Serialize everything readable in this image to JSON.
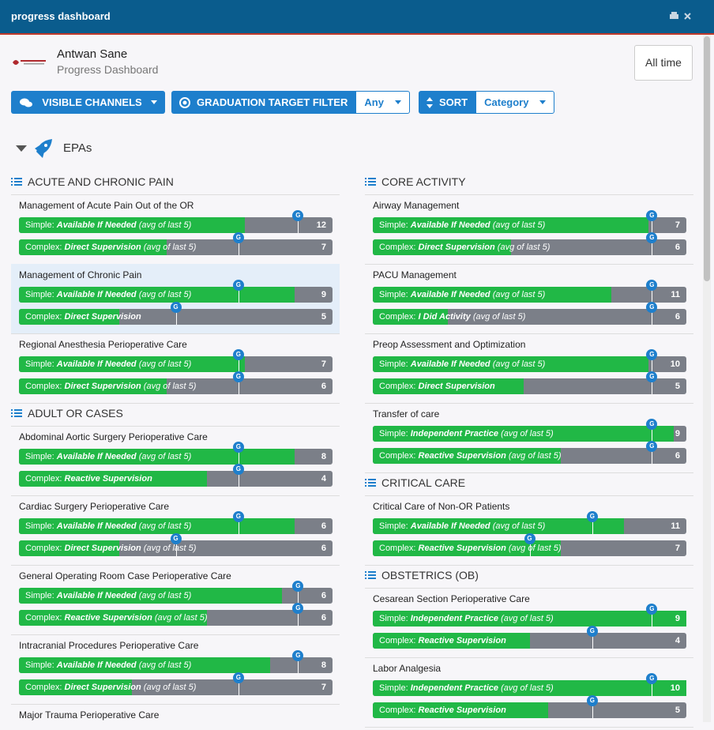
{
  "window": {
    "title": "progress dashboard"
  },
  "header": {
    "name": "Antwan Sane",
    "subtitle": "Progress Dashboard",
    "time_button": "All time"
  },
  "filters": {
    "channels": "VISIBLE CHANNELS",
    "graduation": "GRADUATION TARGET FILTER",
    "graduation_value": "Any",
    "sort": "SORT",
    "sort_value": "Category"
  },
  "section": "EPAs",
  "target_marker": "G",
  "columns": [
    [
      {
        "group": "ACUTE AND CHRONIC PAIN",
        "items": [
          {
            "title": "Management of Acute Pain Out of the OR",
            "bars": [
              {
                "prefix": "Simple:",
                "level": "Available If Needed",
                "note": "(avg of last 5)",
                "count": 12,
                "fill": 72,
                "target": 89
              },
              {
                "prefix": "Complex:",
                "level": "Direct Supervision",
                "note": "(avg of last 5)",
                "count": 7,
                "fill": 47,
                "target": 70
              }
            ]
          },
          {
            "title": "Management of Chronic Pain",
            "highlight": true,
            "bars": [
              {
                "prefix": "Simple:",
                "level": "Available If Needed",
                "note": "(avg of last 5)",
                "count": 9,
                "fill": 88,
                "target": 70
              },
              {
                "prefix": "Complex:",
                "level": "Direct Supervision",
                "count": 5,
                "fill": 32,
                "target": 50
              }
            ]
          },
          {
            "title": "Regional Anesthesia Perioperative Care",
            "bars": [
              {
                "prefix": "Simple:",
                "level": "Available If Needed",
                "note": "(avg of last 5)",
                "count": 7,
                "fill": 72,
                "target": 70
              },
              {
                "prefix": "Complex:",
                "level": "Direct Supervision",
                "note": "(avg of last 5)",
                "count": 6,
                "fill": 47,
                "target": 70
              }
            ]
          }
        ]
      },
      {
        "group": "ADULT OR CASES",
        "items": [
          {
            "title": "Abdominal Aortic Surgery Perioperative Care",
            "bars": [
              {
                "prefix": "Simple:",
                "level": "Available If Needed",
                "note": "(avg of last 5)",
                "count": 8,
                "fill": 88,
                "target": 70
              },
              {
                "prefix": "Complex:",
                "level": "Reactive Supervision",
                "count": 4,
                "fill": 60,
                "target": 70
              }
            ]
          },
          {
            "title": "Cardiac Surgery Perioperative Care",
            "bars": [
              {
                "prefix": "Simple:",
                "level": "Available If Needed",
                "note": "(avg of last 5)",
                "count": 6,
                "fill": 88,
                "target": 70
              },
              {
                "prefix": "Complex:",
                "level": "Direct Supervision",
                "note": "(avg of last 5)",
                "count": 6,
                "fill": 32,
                "target": 50
              }
            ]
          },
          {
            "title": "General Operating Room Case Perioperative Care",
            "bars": [
              {
                "prefix": "Simple:",
                "level": "Available If Needed",
                "note": "(avg of last 5)",
                "count": 6,
                "fill": 84,
                "target": 89
              },
              {
                "prefix": "Complex:",
                "level": "Reactive Supervision",
                "note": "(avg of last 5)",
                "count": 6,
                "fill": 60,
                "target": 89
              }
            ]
          },
          {
            "title": "Intracranial Procedures Perioperative Care",
            "bars": [
              {
                "prefix": "Simple:",
                "level": "Available If Needed",
                "note": "(avg of last 5)",
                "count": 8,
                "fill": 80,
                "target": 89
              },
              {
                "prefix": "Complex:",
                "level": "Direct Supervision",
                "note": "(avg of last 5)",
                "count": 7,
                "fill": 36,
                "target": 70
              }
            ]
          },
          {
            "title": "Major Trauma Perioperative Care"
          }
        ]
      }
    ],
    [
      {
        "group": "CORE ACTIVITY",
        "items": [
          {
            "title": "Airway Management",
            "bars": [
              {
                "prefix": "Simple:",
                "level": "Available If Needed",
                "note": "(avg of last 5)",
                "count": 7,
                "fill": 88,
                "target": 89
              },
              {
                "prefix": "Complex:",
                "level": "Direct Supervision",
                "note": "(avg of last 5)",
                "count": 6,
                "fill": 44,
                "target": 89
              }
            ]
          },
          {
            "title": "PACU Management",
            "bars": [
              {
                "prefix": "Simple:",
                "level": "Available If Needed",
                "note": "(avg of last 5)",
                "count": 11,
                "fill": 76,
                "target": 89
              },
              {
                "prefix": "Complex:",
                "level": "I Did Activity",
                "note": "(avg of last 5)",
                "count": 6,
                "fill": 24,
                "target": 89
              }
            ]
          },
          {
            "title": "Preop Assessment and Optimization",
            "bars": [
              {
                "prefix": "Simple:",
                "level": "Available If Needed",
                "note": "(avg of last 5)",
                "count": 10,
                "fill": 88,
                "target": 89
              },
              {
                "prefix": "Complex:",
                "level": "Direct Supervision",
                "count": 5,
                "fill": 48,
                "target": 89
              }
            ]
          },
          {
            "title": "Transfer of care",
            "bars": [
              {
                "prefix": "Simple:",
                "level": "Independent Practice",
                "note": "(avg of last 5)",
                "count": 9,
                "fill": 96,
                "target": 89
              },
              {
                "prefix": "Complex:",
                "level": "Reactive Supervision",
                "note": "(avg of last 5)",
                "count": 6,
                "fill": 60,
                "target": 89
              }
            ]
          }
        ]
      },
      {
        "group": "CRITICAL CARE",
        "items": [
          {
            "title": "Critical Care of Non-OR Patients",
            "bars": [
              {
                "prefix": "Simple:",
                "level": "Available If Needed",
                "note": "(avg of last 5)",
                "count": 11,
                "fill": 80,
                "target": 70
              },
              {
                "prefix": "Complex:",
                "level": "Reactive Supervision",
                "note": "(avg of last 5)",
                "count": 7,
                "fill": 60,
                "target": 50
              }
            ]
          }
        ]
      },
      {
        "group": "OBSTETRICS (OB)",
        "items": [
          {
            "title": "Cesarean Section Perioperative Care",
            "bars": [
              {
                "prefix": "Simple:",
                "level": "Independent Practice",
                "note": "(avg of last 5)",
                "count": 9,
                "fill": 100,
                "target": 89
              },
              {
                "prefix": "Complex:",
                "level": "Reactive Supervision",
                "count": 4,
                "fill": 50,
                "target": 70
              }
            ]
          },
          {
            "title": "Labor Analgesia",
            "bars": [
              {
                "prefix": "Simple:",
                "level": "Independent Practice",
                "note": "(avg of last 5)",
                "count": 10,
                "fill": 100,
                "target": 89
              },
              {
                "prefix": "Complex:",
                "level": "Reactive Supervision",
                "count": 5,
                "fill": 56,
                "target": 70
              }
            ]
          }
        ]
      }
    ]
  ]
}
